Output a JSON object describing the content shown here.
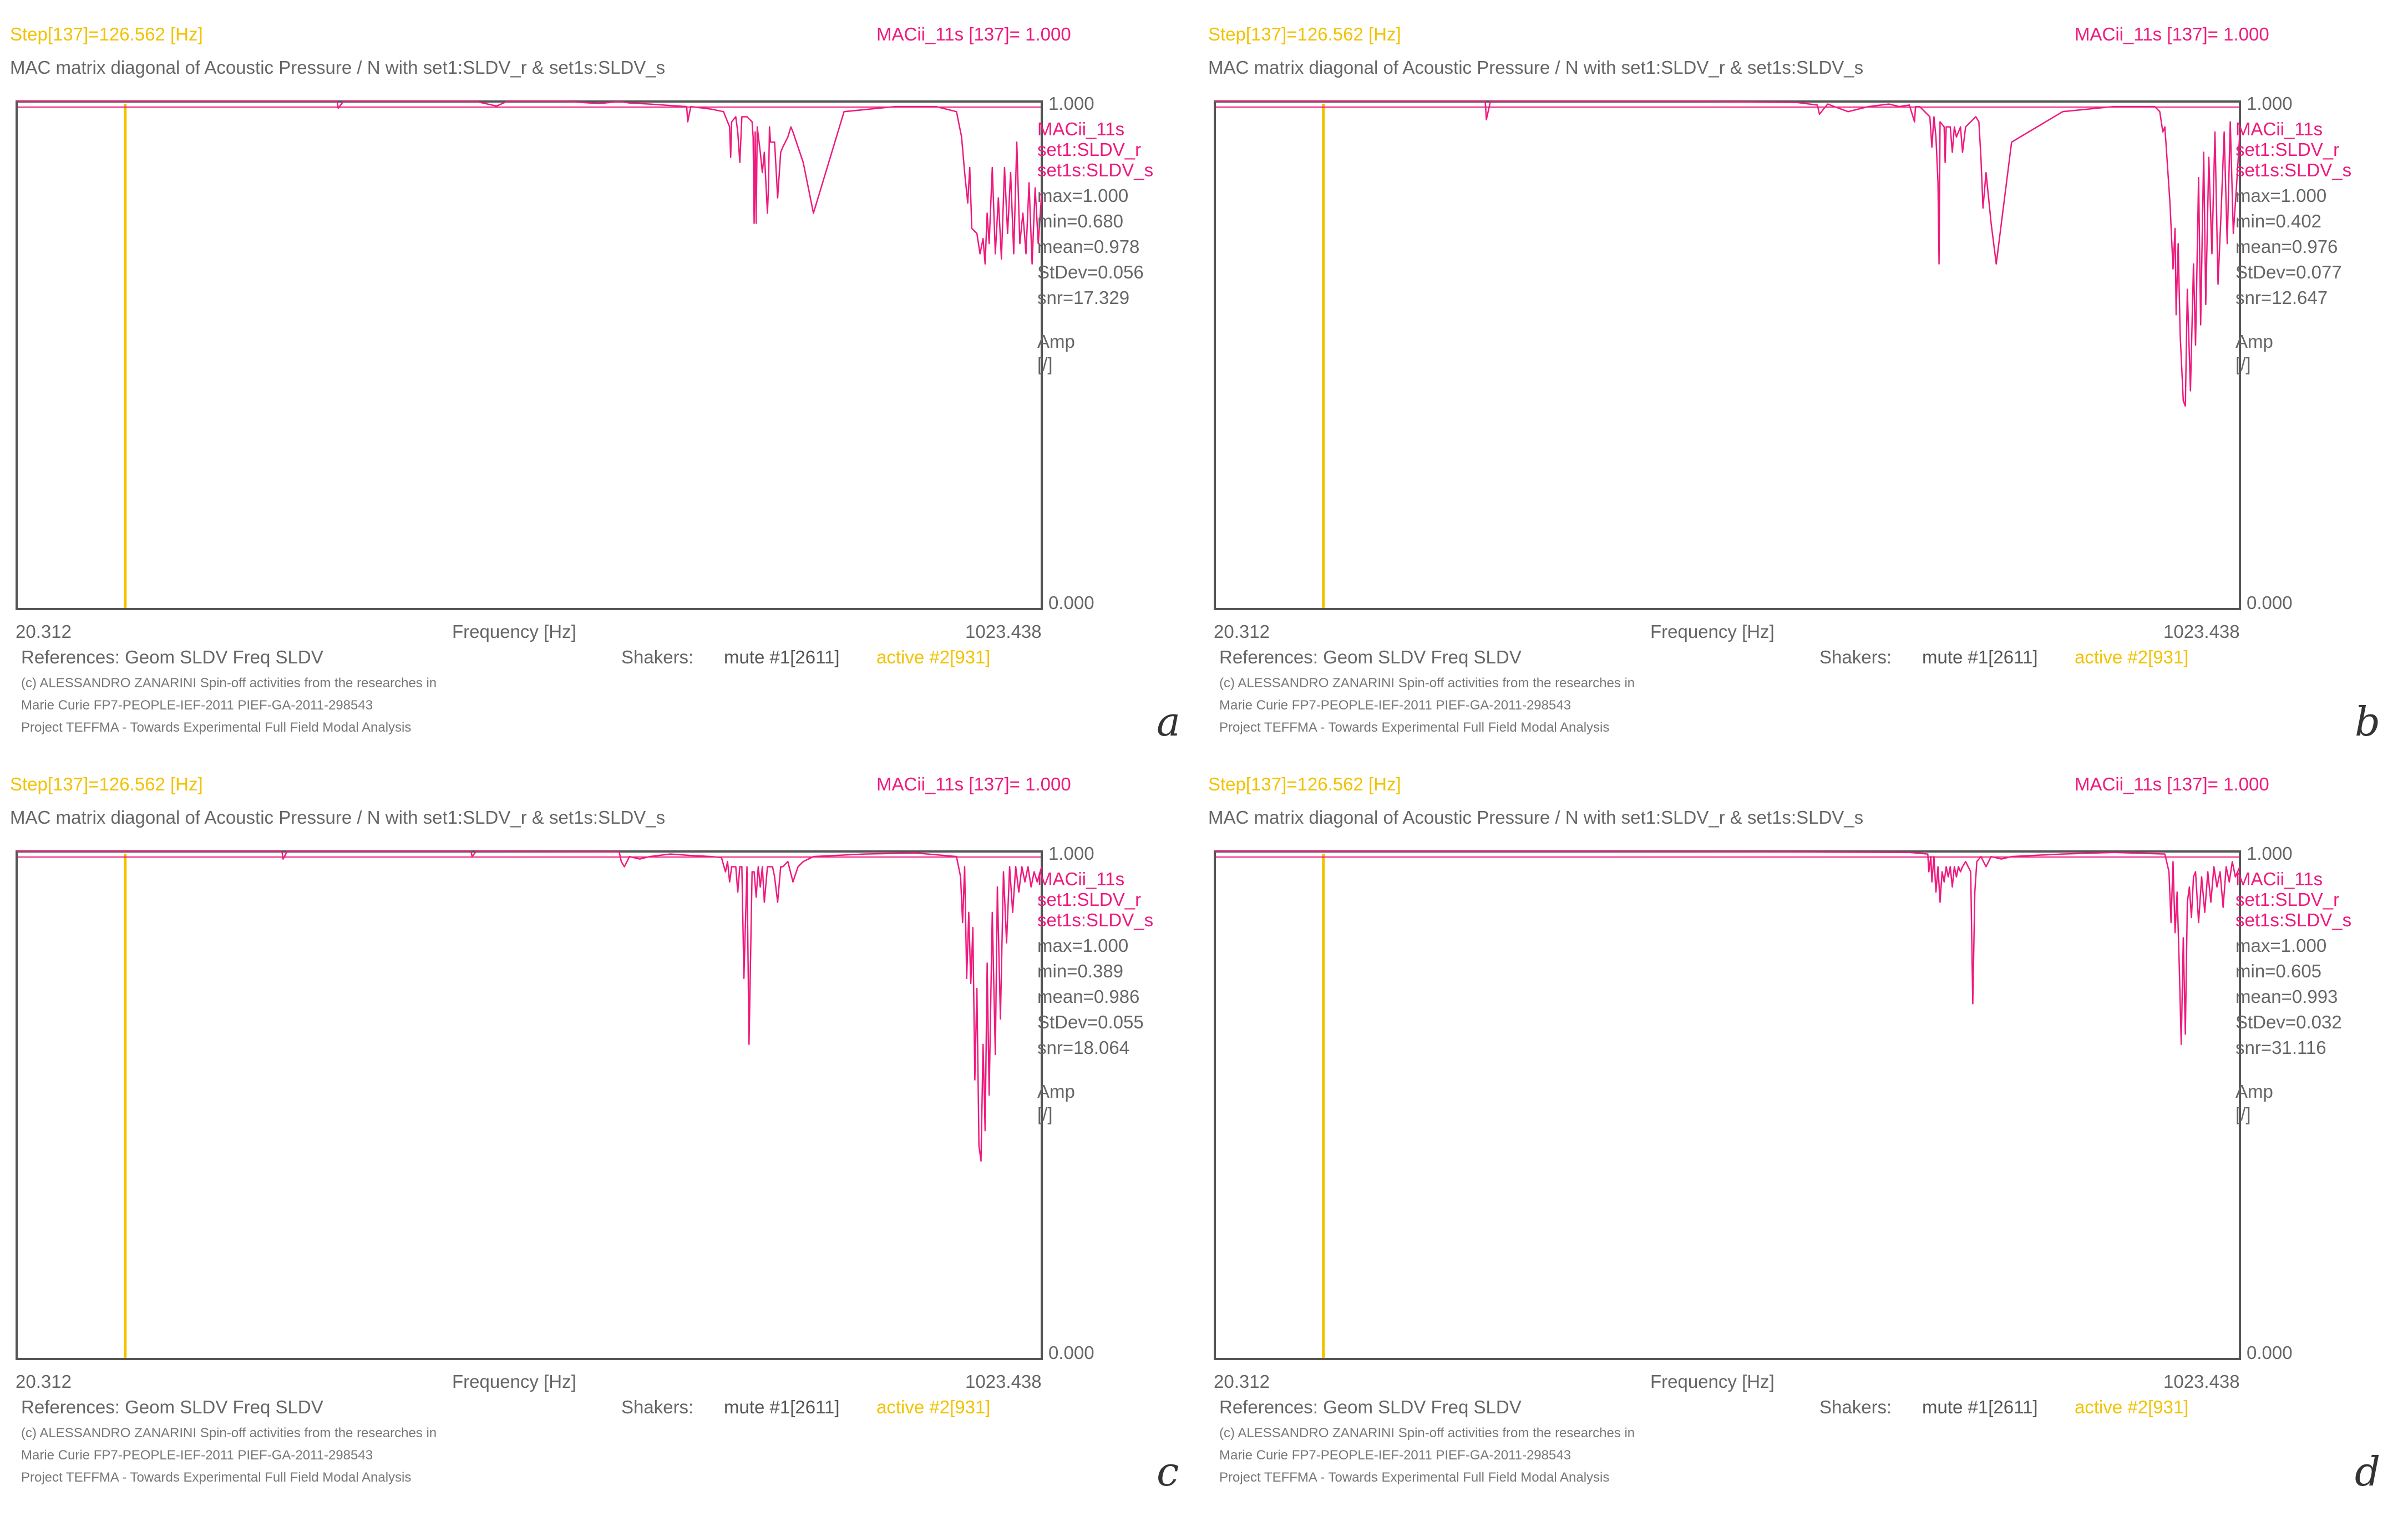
{
  "common": {
    "step_label": "Step[137]=126.562 [Hz]",
    "mac_value_label": "MACii_11s [137]= 1.000",
    "title": "MAC matrix diagonal of Acoustic Pressure / N with set1:SLDV_r & set1s:SLDV_s",
    "y_top": "1.000",
    "y_bottom": "0.000",
    "x_min": "20.312",
    "x_max": "1023.438",
    "x_label": "Frequency [Hz]",
    "legend": [
      "MACii_11s",
      "set1:SLDV_r",
      "set1s:SLDV_s"
    ],
    "amp_label": "Amp",
    "amp_unit": "[/]",
    "references": "References: Geom SLDV Freq SLDV",
    "shakers_label": "Shakers:",
    "mute": "mute #1[2611]",
    "active": "active #2[931]",
    "copyright1": "(c) ALESSANDRO ZANARINI Spin-off activities from the researches in",
    "copyright2": "Marie Curie FP7-PEOPLE-IEF-2011 PIEF-GA-2011-298543",
    "copyright3": "Project TEFFMA - Towards Experimental Full Field Modal Analysis",
    "colors": {
      "trace": "#ee1a7d",
      "cursor": "#f2c200",
      "frame": "#555555"
    }
  },
  "chart_data": [
    {
      "type": "line",
      "letter": "a",
      "title": "MAC matrix diagonal of Acoustic Pressure / N with set1:SLDV_r & set1s:SLDV_s",
      "xlabel": "Frequency [Hz]",
      "ylabel": "Amp [/]",
      "xlim": [
        20.312,
        1023.438
      ],
      "ylim": [
        0,
        1
      ],
      "cursor_x": 126.562,
      "stats": [
        "max=1.000",
        "min=0.680",
        "mean=0.978",
        "StDev=0.056",
        "snr=17.329"
      ],
      "series": [
        {
          "name": "MACii_11s",
          "x": [
            20.3,
            200,
            280,
            334,
            335,
            340,
            400,
            470,
            490,
            500,
            520,
            560,
            590,
            610,
            620,
            640,
            660,
            676,
            677,
            680,
            700,
            712,
            718,
            719,
            720,
            724,
            726,
            728,
            730,
            735,
            740,
            741,
            742,
            743,
            744,
            745,
            748,
            750,
            752,
            755,
            756,
            757,
            758,
            762,
            765,
            768,
            770,
            775,
            778,
            780,
            790,
            800,
            830,
            880,
            920,
            940,
            945,
            948,
            951,
            953,
            955,
            960,
            963,
            966,
            968,
            970,
            972,
            975,
            978,
            981,
            984,
            987,
            990,
            993,
            996,
            999,
            1002,
            1005,
            1008,
            1011,
            1014,
            1017,
            1020,
            1023.4
          ],
          "y": [
            1.0,
            1.0,
            1.0,
            1.0,
            0.987,
            1.0,
            1.0,
            1.0,
            0.991,
            1.0,
            1.0,
            1.0,
            0.996,
            1.0,
            0.997,
            0.995,
            0.992,
            0.99,
            0.96,
            0.99,
            0.985,
            0.98,
            0.95,
            0.89,
            0.96,
            0.97,
            0.94,
            0.88,
            0.97,
            0.97,
            0.96,
            0.93,
            0.76,
            0.94,
            0.76,
            0.95,
            0.9,
            0.86,
            0.9,
            0.78,
            0.83,
            0.95,
            0.92,
            0.92,
            0.81,
            0.9,
            0.91,
            0.93,
            0.95,
            0.94,
            0.88,
            0.78,
            0.98,
            0.99,
            0.99,
            0.98,
            0.93,
            0.86,
            0.8,
            0.87,
            0.75,
            0.74,
            0.7,
            0.73,
            0.68,
            0.78,
            0.72,
            0.87,
            0.7,
            0.81,
            0.69,
            0.87,
            0.74,
            0.86,
            0.7,
            0.92,
            0.72,
            0.78,
            0.7,
            0.84,
            0.68,
            0.83,
            0.72,
            0.82
          ]
        }
      ]
    },
    {
      "type": "line",
      "letter": "b",
      "title": "MAC matrix diagonal of Acoustic Pressure / N with set1:SLDV_r & set1s:SLDV_s",
      "xlabel": "Frequency [Hz]",
      "ylabel": "Amp [/]",
      "xlim": [
        20.312,
        1023.438
      ],
      "ylim": [
        0,
        1
      ],
      "cursor_x": 126.562,
      "stats": [
        "max=1.000",
        "min=0.402",
        "mean=0.976",
        "StDev=0.077",
        "snr=12.647"
      ],
      "series": [
        {
          "name": "MACii_11s",
          "x": [
            20.3,
            200,
            285,
            286,
            290,
            400,
            500,
            590,
            610,
            612,
            620,
            640,
            660,
            680,
            690,
            700,
            705,
            706,
            710,
            720,
            722,
            724,
            726,
            728,
            729,
            730,
            734,
            735,
            736,
            740,
            742,
            744,
            746,
            750,
            752,
            755,
            760,
            765,
            768,
            770,
            772,
            775,
            780,
            785,
            800,
            850,
            900,
            940,
            945,
            948,
            950,
            955,
            958,
            960,
            961,
            963,
            965,
            968,
            970,
            972,
            975,
            978,
            980,
            983,
            985,
            988,
            990,
            993,
            996,
            999,
            1002,
            1005,
            1008,
            1011,
            1014,
            1017,
            1020,
            1023.4
          ],
          "y": [
            1.0,
            1.0,
            1.0,
            0.964,
            1.0,
            1.0,
            1.0,
            0.998,
            0.993,
            0.975,
            0.995,
            0.98,
            0.99,
            0.995,
            0.99,
            0.993,
            0.96,
            0.99,
            0.99,
            0.97,
            0.91,
            0.97,
            0.93,
            0.84,
            0.68,
            0.96,
            0.95,
            0.88,
            0.95,
            0.95,
            0.9,
            0.95,
            0.93,
            0.95,
            0.9,
            0.95,
            0.96,
            0.97,
            0.96,
            0.89,
            0.79,
            0.86,
            0.76,
            0.68,
            0.92,
            0.98,
            0.99,
            0.99,
            0.98,
            0.94,
            0.95,
            0.8,
            0.67,
            0.75,
            0.58,
            0.72,
            0.54,
            0.41,
            0.4,
            0.63,
            0.43,
            0.68,
            0.52,
            0.85,
            0.56,
            0.9,
            0.6,
            0.89,
            0.7,
            0.94,
            0.64,
            0.78,
            0.94,
            0.72,
            0.96,
            0.74,
            0.83,
            0.94
          ]
        }
      ]
    },
    {
      "type": "line",
      "letter": "c",
      "title": "MAC matrix diagonal of Acoustic Pressure / N with set1:SLDV_r & set1s:SLDV_s",
      "xlabel": "Frequency [Hz]",
      "ylabel": "Amp [/]",
      "xlim": [
        20.312,
        1023.438
      ],
      "ylim": [
        0,
        1
      ],
      "cursor_x": 126.562,
      "stats": [
        "max=1.000",
        "min=0.389",
        "mean=0.986",
        "StDev=0.055",
        "snr=18.064"
      ],
      "series": [
        {
          "name": "MACii_11s",
          "x": [
            20.3,
            200,
            280,
            281,
            285,
            400,
            465,
            466,
            470,
            500,
            610,
            612,
            615,
            620,
            630,
            640,
            660,
            680,
            700,
            710,
            714,
            716,
            718,
            720,
            724,
            726,
            728,
            730,
            732,
            735,
            737,
            740,
            742,
            744,
            746,
            748,
            750,
            752,
            755,
            760,
            762,
            765,
            768,
            770,
            775,
            780,
            785,
            790,
            800,
            850,
            900,
            940,
            944,
            946,
            948,
            950,
            952,
            954,
            956,
            958,
            960,
            962,
            964,
            966,
            968,
            970,
            972,
            975,
            978,
            980,
            983,
            986,
            989,
            992,
            995,
            998,
            1001,
            1004,
            1007,
            1010,
            1013,
            1016,
            1019,
            1023.4
          ],
          "y": [
            1.0,
            1.0,
            1.0,
            0.985,
            1.0,
            1.0,
            1.0,
            0.99,
            1.0,
            1.0,
            0.999,
            0.98,
            0.97,
            0.99,
            0.985,
            0.99,
            0.995,
            0.992,
            0.99,
            0.988,
            0.96,
            0.98,
            0.94,
            0.97,
            0.97,
            0.92,
            0.97,
            0.97,
            0.75,
            0.97,
            0.62,
            0.96,
            0.96,
            0.91,
            0.97,
            0.93,
            0.97,
            0.9,
            0.97,
            0.97,
            0.95,
            0.9,
            0.97,
            0.97,
            0.98,
            0.94,
            0.97,
            0.98,
            0.99,
            0.995,
            0.997,
            0.99,
            0.95,
            0.86,
            0.97,
            0.75,
            0.88,
            0.74,
            0.85,
            0.55,
            0.73,
            0.42,
            0.39,
            0.62,
            0.45,
            0.78,
            0.52,
            0.88,
            0.6,
            0.93,
            0.67,
            0.96,
            0.82,
            0.97,
            0.88,
            0.97,
            0.92,
            0.97,
            0.94,
            0.97,
            0.93,
            0.96,
            0.94,
            0.97
          ]
        }
      ]
    },
    {
      "type": "line",
      "letter": "d",
      "title": "MAC matrix diagonal of Acoustic Pressure / N with set1:SLDV_r & set1s:SLDV_s",
      "xlabel": "Frequency [Hz]",
      "ylabel": "Amp [/]",
      "xlim": [
        20.312,
        1023.438
      ],
      "ylim": [
        0,
        1
      ],
      "cursor_x": 126.562,
      "stats": [
        "max=1.000",
        "min=0.605",
        "mean=0.993",
        "StDev=0.032",
        "snr=31.116"
      ],
      "series": [
        {
          "name": "MACii_11s",
          "x": [
            20.3,
            200,
            400,
            600,
            700,
            718,
            719,
            721,
            722,
            724,
            726,
            728,
            730,
            732,
            734,
            736,
            738,
            740,
            742,
            744,
            746,
            748,
            750,
            752,
            755,
            760,
            762,
            764,
            766,
            770,
            775,
            780,
            790,
            800,
            850,
            900,
            950,
            954,
            956,
            958,
            960,
            962,
            964,
            966,
            968,
            970,
            972,
            974,
            976,
            978,
            980,
            983,
            986,
            989,
            992,
            995,
            998,
            1001,
            1004,
            1007,
            1010,
            1013,
            1016,
            1019,
            1023.4
          ],
          "y": [
            1.0,
            1.0,
            1.0,
            0.999,
            0.998,
            0.995,
            0.96,
            0.99,
            0.94,
            0.99,
            0.92,
            0.97,
            0.9,
            0.96,
            0.94,
            0.97,
            0.95,
            0.97,
            0.93,
            0.97,
            0.95,
            0.97,
            0.96,
            0.97,
            0.98,
            0.96,
            0.7,
            0.92,
            0.98,
            0.99,
            0.97,
            0.99,
            0.985,
            0.99,
            0.995,
            0.998,
            0.995,
            0.96,
            0.86,
            0.98,
            0.84,
            0.92,
            0.78,
            0.62,
            0.83,
            0.64,
            0.9,
            0.93,
            0.87,
            0.95,
            0.96,
            0.86,
            0.95,
            0.88,
            0.96,
            0.9,
            0.97,
            0.93,
            0.96,
            0.89,
            0.97,
            0.94,
            0.98,
            0.95,
            0.97
          ]
        }
      ]
    }
  ]
}
